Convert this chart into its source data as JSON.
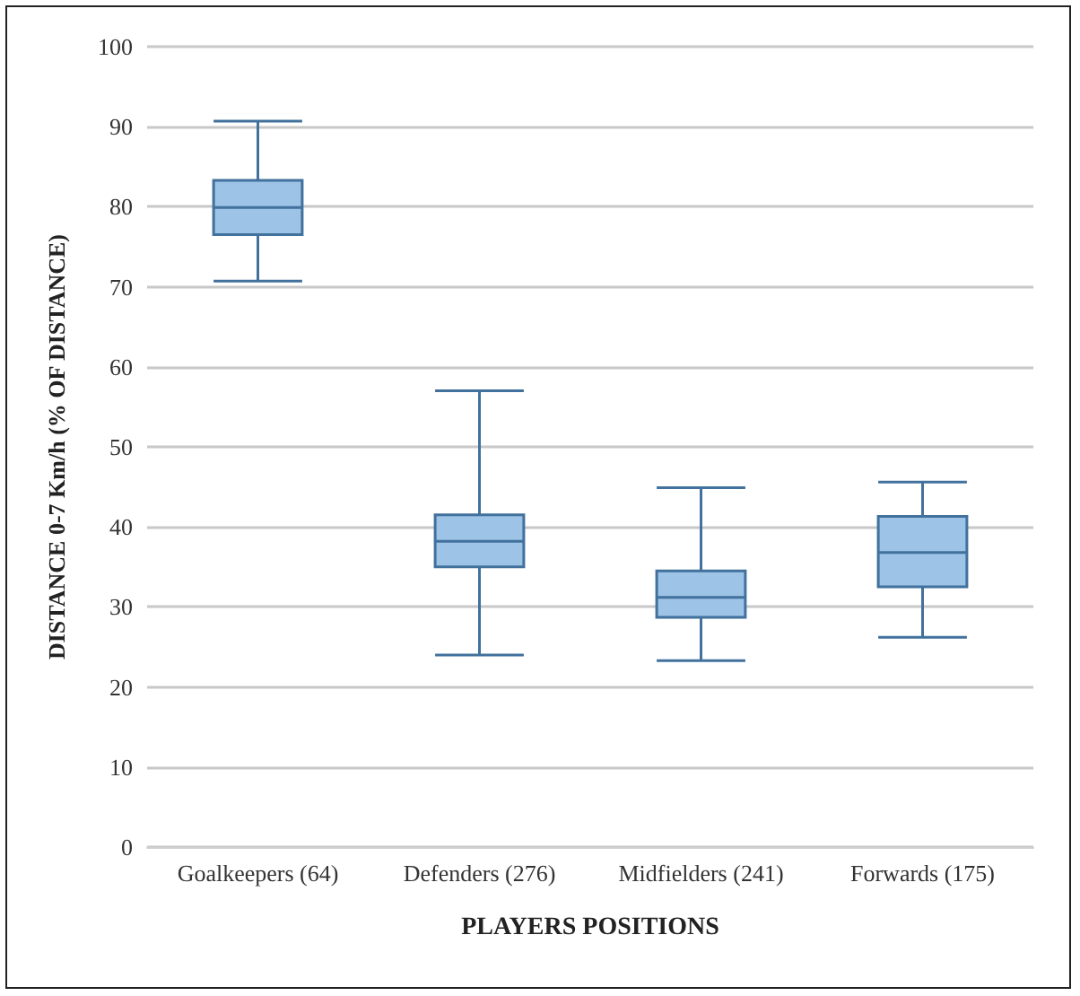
{
  "chart_data": {
    "type": "box",
    "xlabel": "PLAYERS POSITIONS",
    "ylabel": "DISTANCE 0-7 Km/h (% OF DISTANCE)",
    "categories": [
      "Goalkeepers (64)",
      "Defenders (276)",
      "Midfielders (241)",
      "Forwards (175)"
    ],
    "boxes": [
      {
        "low": 70.7,
        "q1": 76.5,
        "median": 79.9,
        "q3": 83.3,
        "high": 90.7
      },
      {
        "low": 24,
        "q1": 35,
        "median": 38.2,
        "q3": 41.5,
        "high": 57
      },
      {
        "low": 23.3,
        "q1": 28.7,
        "median": 31.2,
        "q3": 34.5,
        "high": 44.9
      },
      {
        "low": 26.2,
        "q1": 32.5,
        "median": 36.8,
        "q3": 41.3,
        "high": 45.6
      }
    ],
    "color": "#9dc3e6",
    "ylim": [
      0,
      100
    ],
    "yticks": [
      0,
      10,
      20,
      30,
      40,
      50,
      60,
      70,
      80,
      90,
      100
    ],
    "grid": "y"
  }
}
